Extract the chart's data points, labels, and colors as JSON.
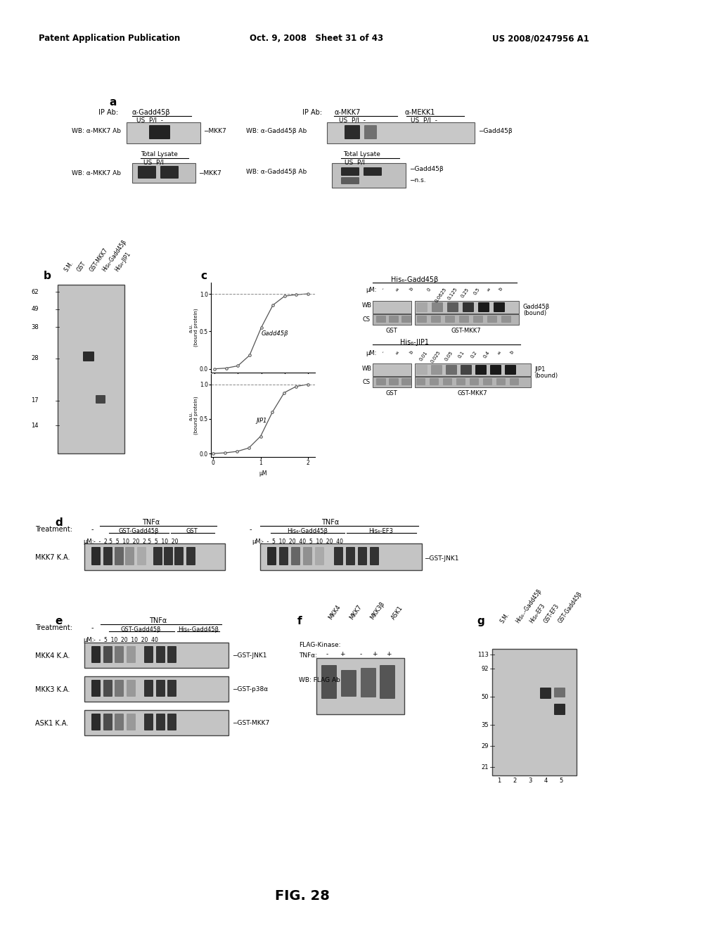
{
  "header_left": "Patent Application Publication",
  "header_center": "Oct. 9, 2008   Sheet 31 of 43",
  "header_right": "US 2008/0247956 A1",
  "fig_label": "FIG. 28",
  "background_color": "#ffffff"
}
